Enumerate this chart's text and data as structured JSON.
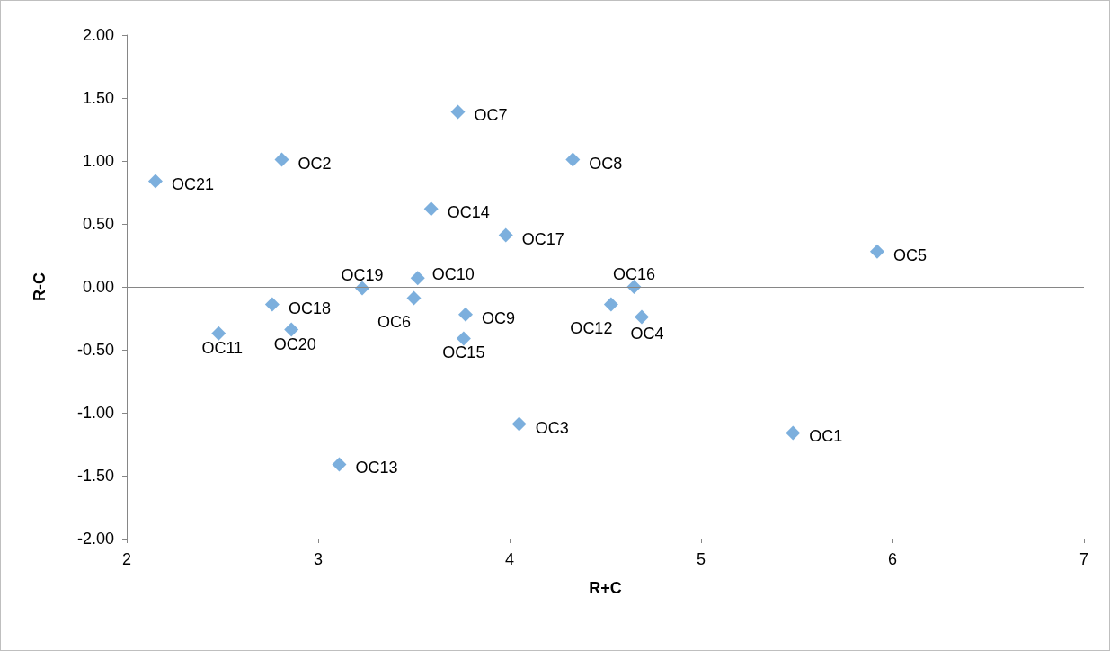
{
  "chart_data": {
    "type": "scatter",
    "xlabel": "R+C",
    "ylabel": "R-C",
    "x": [
      5.48,
      2.81,
      4.05,
      4.69,
      5.92,
      3.5,
      3.73,
      4.33,
      3.77,
      3.52,
      2.48,
      4.53,
      3.11,
      3.59,
      3.76,
      4.65,
      3.98,
      2.76,
      3.23,
      2.86,
      2.15
    ],
    "values": [
      -1.16,
      1.01,
      -1.09,
      -0.24,
      0.28,
      -0.09,
      1.39,
      1.01,
      -0.22,
      0.07,
      -0.37,
      -0.14,
      -1.41,
      0.62,
      -0.41,
      0.0,
      0.41,
      -0.14,
      -0.01,
      -0.34,
      0.84
    ],
    "color": "#5b9bd5",
    "marker": "diamond",
    "grid": false,
    "ref_lines": [
      {
        "axis": "y",
        "value": 0,
        "color": "#868686"
      }
    ],
    "xlim": [
      2,
      7
    ],
    "xticks": [
      2,
      3,
      4,
      5,
      6,
      7
    ],
    "ylim": [
      -2,
      2
    ],
    "yticks": [
      {
        "value": -2,
        "label": "-2.00"
      },
      {
        "value": -1.5,
        "label": "-1.50"
      },
      {
        "value": -1,
        "label": "-1.00"
      },
      {
        "value": -0.5,
        "label": "-0.50"
      },
      {
        "value": 0,
        "label": "0.00"
      },
      {
        "value": 0.5,
        "label": "0.50"
      },
      {
        "value": 1,
        "label": "1.00"
      },
      {
        "value": 1.5,
        "label": "1.50"
      },
      {
        "value": 2,
        "label": "2.00"
      }
    ],
    "annotations": [
      {
        "text": "OC1",
        "x": 5.48,
        "y": -1.16
      },
      {
        "text": "OC2",
        "x": 2.81,
        "y": 1.01
      },
      {
        "text": "OC3",
        "x": 4.05,
        "y": -1.09
      },
      {
        "text": "OC4",
        "x": 4.69,
        "y": -0.24
      },
      {
        "text": "OC5",
        "x": 5.92,
        "y": 0.28
      },
      {
        "text": "OC6",
        "x": 3.5,
        "y": -0.09
      },
      {
        "text": "OC7",
        "x": 3.73,
        "y": 1.39
      },
      {
        "text": "OC8",
        "x": 4.33,
        "y": 1.01
      },
      {
        "text": "OC9",
        "x": 3.77,
        "y": -0.22
      },
      {
        "text": "OC10",
        "x": 3.52,
        "y": 0.07
      },
      {
        "text": "OC11",
        "x": 2.48,
        "y": -0.37
      },
      {
        "text": "OC12",
        "x": 4.53,
        "y": -0.14
      },
      {
        "text": "OC13",
        "x": 3.11,
        "y": -1.41
      },
      {
        "text": "OC14",
        "x": 3.59,
        "y": 0.62
      },
      {
        "text": "OC15",
        "x": 3.76,
        "y": -0.41
      },
      {
        "text": "OC16",
        "x": 4.65,
        "y": 0.0
      },
      {
        "text": "OC17",
        "x": 3.98,
        "y": 0.41
      },
      {
        "text": "OC18",
        "x": 2.76,
        "y": -0.14
      },
      {
        "text": "OC19",
        "x": 3.23,
        "y": -0.01
      },
      {
        "text": "OC20",
        "x": 2.86,
        "y": -0.34
      },
      {
        "text": "OC21",
        "x": 2.15,
        "y": 0.84
      }
    ]
  }
}
